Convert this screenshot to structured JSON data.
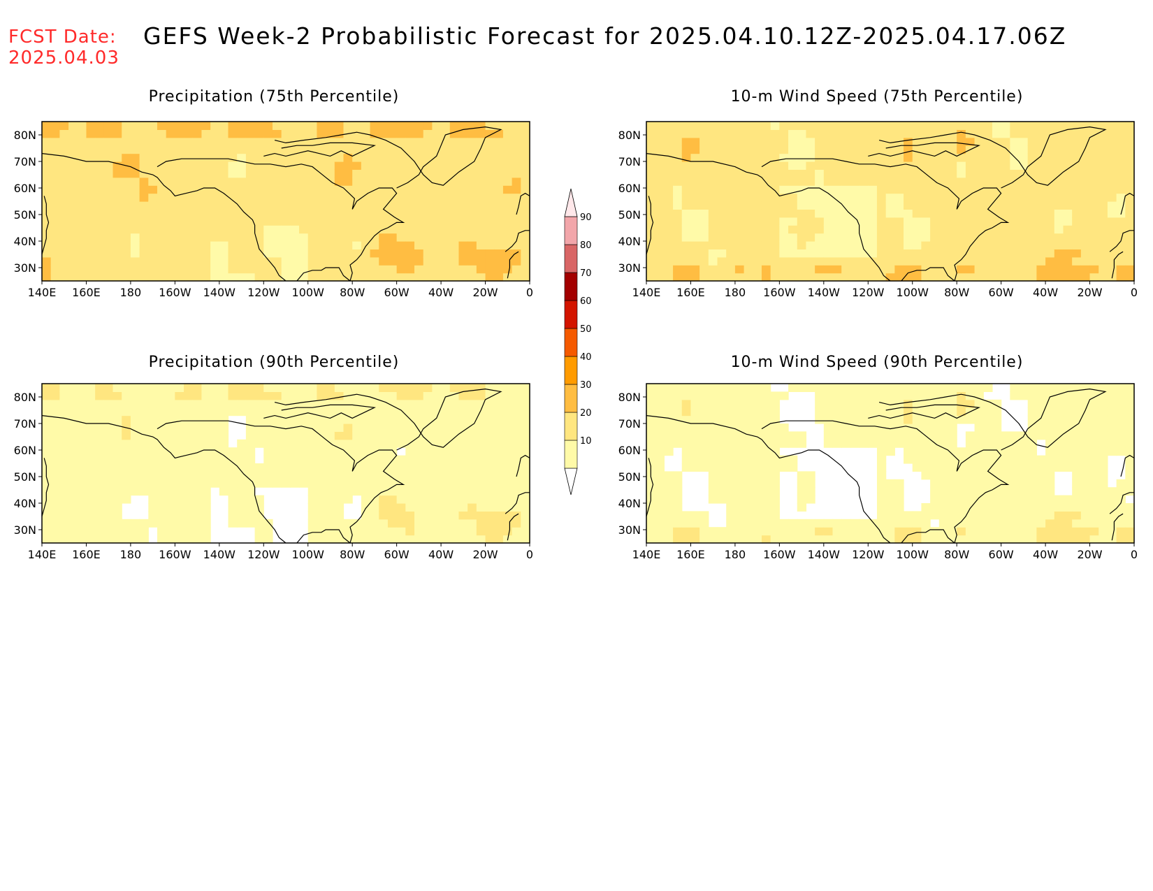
{
  "header": {
    "fcst_label": "FCST Date:",
    "fcst_date": "2025.04.03",
    "title": "GEFS Week-2 Probabilistic Forecast for 2025.04.10.12Z-2025.04.17.06Z"
  },
  "panels": [
    {
      "title": "Precipitation (75th Percentile)",
      "intensity": "high",
      "field": "precip"
    },
    {
      "title": "10-m Wind Speed (75th Percentile)",
      "intensity": "high",
      "field": "wind"
    },
    {
      "title": "Precipitation (90th Percentile)",
      "intensity": "low",
      "field": "precip"
    },
    {
      "title": "10-m Wind Speed (90th Percentile)",
      "intensity": "low",
      "field": "wind"
    }
  ],
  "axes": {
    "x_ticks": [
      "140E",
      "160E",
      "180",
      "160W",
      "140W",
      "120W",
      "100W",
      "80W",
      "60W",
      "40W",
      "20W",
      "0"
    ],
    "y_ticks": [
      "80N",
      "70N",
      "60N",
      "50N",
      "40N",
      "30N"
    ],
    "lon_range": [
      140,
      360
    ],
    "lat_range": [
      25,
      85
    ]
  },
  "colorbar": {
    "labels": [
      "10",
      "20",
      "30",
      "40",
      "50",
      "60",
      "70",
      "80",
      "90"
    ],
    "colors": [
      "#fffaa8",
      "#ffe680",
      "#ffbd42",
      "#ff9b00",
      "#f55a00",
      "#d31500",
      "#a30000",
      "#d96666",
      "#f2a6aa"
    ],
    "top_color": "#ffe8ea"
  }
}
